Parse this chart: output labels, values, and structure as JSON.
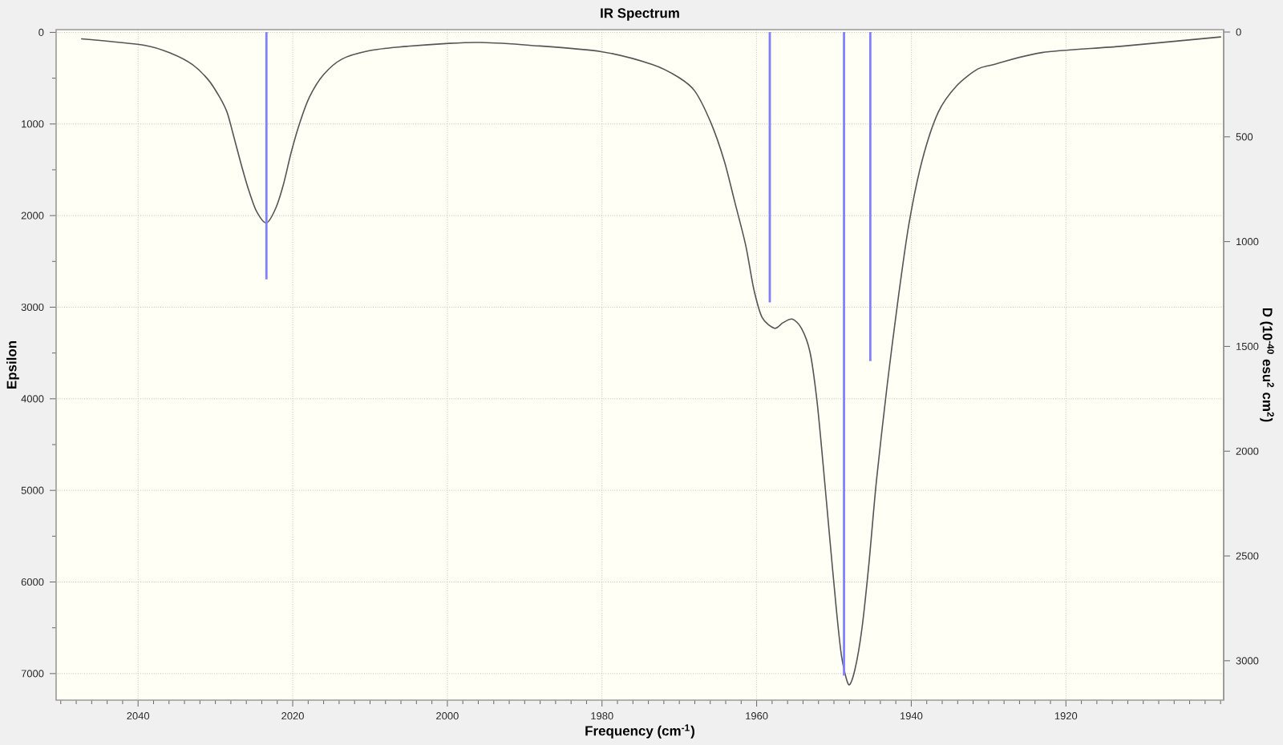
{
  "chart_data": {
    "type": "line",
    "title": "IR Spectrum",
    "xlabel": "Frequency (cm$^{-1}$)",
    "ylabel": "Epsilon",
    "y2label": "D (10$^{-40}$ esu$^{2}$ cm$^{2}$)",
    "xlim": [
      2050.6,
      1899.6
    ],
    "ylim": [
      7290,
      -30
    ],
    "y2lim": [
      3188,
      -11.5
    ],
    "xticks": [
      {
        "value": 2050,
        "label": null
      },
      {
        "value": 2048,
        "label": null
      },
      {
        "value": 2046,
        "label": null
      },
      {
        "value": 2044,
        "label": null
      },
      {
        "value": 2042,
        "label": null
      },
      2040,
      {
        "value": 2038,
        "label": null
      },
      {
        "value": 2036,
        "label": null
      },
      {
        "value": 2034,
        "label": null
      },
      {
        "value": 2032,
        "label": null
      },
      {
        "value": 2030,
        "label": null
      },
      {
        "value": 2028,
        "label": null
      },
      {
        "value": 2026,
        "label": null
      },
      {
        "value": 2024,
        "label": null
      },
      {
        "value": 2022,
        "label": null
      },
      2020,
      {
        "value": 2018,
        "label": null
      },
      {
        "value": 2016,
        "label": null
      },
      {
        "value": 2014,
        "label": null
      },
      {
        "value": 2012,
        "label": null
      },
      {
        "value": 2010,
        "label": null
      },
      {
        "value": 2008,
        "label": null
      },
      {
        "value": 2006,
        "label": null
      },
      {
        "value": 2004,
        "label": null
      },
      {
        "value": 2002,
        "label": null
      },
      2000,
      {
        "value": 1998,
        "label": null
      },
      {
        "value": 1996,
        "label": null
      },
      {
        "value": 1994,
        "label": null
      },
      {
        "value": 1992,
        "label": null
      },
      {
        "value": 1990,
        "label": null
      },
      {
        "value": 1988,
        "label": null
      },
      {
        "value": 1986,
        "label": null
      },
      {
        "value": 1984,
        "label": null
      },
      {
        "value": 1982,
        "label": null
      },
      1980,
      {
        "value": 1978,
        "label": null
      },
      {
        "value": 1976,
        "label": null
      },
      {
        "value": 1974,
        "label": null
      },
      {
        "value": 1972,
        "label": null
      },
      {
        "value": 1970,
        "label": null
      },
      {
        "value": 1968,
        "label": null
      },
      {
        "value": 1966,
        "label": null
      },
      {
        "value": 1964,
        "label": null
      },
      {
        "value": 1962,
        "label": null
      },
      1960,
      {
        "value": 1958,
        "label": null
      },
      {
        "value": 1956,
        "label": null
      },
      {
        "value": 1954,
        "label": null
      },
      {
        "value": 1952,
        "label": null
      },
      {
        "value": 1950,
        "label": null
      },
      {
        "value": 1948,
        "label": null
      },
      {
        "value": 1946,
        "label": null
      },
      {
        "value": 1944,
        "label": null
      },
      {
        "value": 1942,
        "label": null
      },
      1940,
      {
        "value": 1938,
        "label": null
      },
      {
        "value": 1936,
        "label": null
      },
      {
        "value": 1934,
        "label": null
      },
      {
        "value": 1932,
        "label": null
      },
      {
        "value": 1930,
        "label": null
      },
      {
        "value": 1928,
        "label": null
      },
      {
        "value": 1926,
        "label": null
      },
      {
        "value": 1924,
        "label": null
      },
      {
        "value": 1922,
        "label": null
      },
      1920,
      {
        "value": 1918,
        "label": null
      },
      {
        "value": 1916,
        "label": null
      },
      {
        "value": 1914,
        "label": null
      },
      {
        "value": 1912,
        "label": null
      },
      {
        "value": 1910,
        "label": null
      },
      {
        "value": 1908,
        "label": null
      },
      {
        "value": 1906,
        "label": null
      },
      {
        "value": 1904,
        "label": null
      },
      {
        "value": 1902,
        "label": null
      },
      {
        "value": 1900,
        "label": null
      }
    ],
    "yticks": [
      0,
      {
        "value": 500,
        "label": null
      },
      1000,
      {
        "value": 1500,
        "label": null
      },
      2000,
      {
        "value": 2500,
        "label": null
      },
      3000,
      {
        "value": 3500,
        "label": null
      },
      4000,
      {
        "value": 4500,
        "label": null
      },
      5000,
      {
        "value": 5500,
        "label": null
      },
      6000,
      {
        "value": 6500,
        "label": null
      },
      7000
    ],
    "y2ticks": [
      0,
      500,
      1000,
      1500,
      2000,
      2500,
      3000
    ],
    "grid": true,
    "series": [
      {
        "color": "#555555",
        "x": [
          2047.3,
          2039.2,
          2035.7,
          2033.0,
          2030.9,
          2029.5,
          2028.5,
          2027.8,
          2026.7,
          2025.7,
          2024.7,
          2023.4,
          2022.2,
          2021.2,
          2020.2,
          2019.1,
          2017.8,
          2016.0,
          2013.6,
          2010.1,
          2006.3,
          1999.8,
          1995.6,
          1989.4,
          1980.1,
          1973.5,
          1970.1,
          1968.0,
          1965.9,
          1964.2,
          1962.8,
          1961.4,
          1960.4,
          1959.3,
          1957.7,
          1956.6,
          1955.4,
          1954.2,
          1953.1,
          1952.2,
          1951.4,
          1950.6,
          1949.7,
          1949.0,
          1948.1,
          1947.3,
          1946.4,
          1945.5,
          1944.5,
          1943.1,
          1941.7,
          1940.3,
          1938.6,
          1936.5,
          1934.1,
          1931.4,
          1929.3,
          1923.1,
          1912.7,
          1900.0
        ],
        "values": [
          70,
          140,
          230,
          350,
          520,
          700,
          870,
          1080,
          1430,
          1720,
          1950,
          2080,
          1920,
          1660,
          1310,
          990,
          700,
          460,
          290,
          200,
          160,
          120,
          110,
          140,
          210,
          350,
          490,
          640,
          990,
          1400,
          1860,
          2330,
          2790,
          3110,
          3230,
          3170,
          3130,
          3230,
          3490,
          4020,
          4720,
          5470,
          6290,
          6820,
          7120,
          6960,
          6520,
          5820,
          4890,
          3840,
          2910,
          2090,
          1400,
          870,
          580,
          400,
          350,
          220,
          150,
          50
        ]
      },
      {
        "type": "bar",
        "axis": "y2",
        "color": "#8080ff",
        "x": [
          2023.4,
          1958.3,
          1948.7,
          1945.3
        ],
        "values": [
          1180,
          1290,
          3070,
          1570
        ]
      }
    ]
  }
}
